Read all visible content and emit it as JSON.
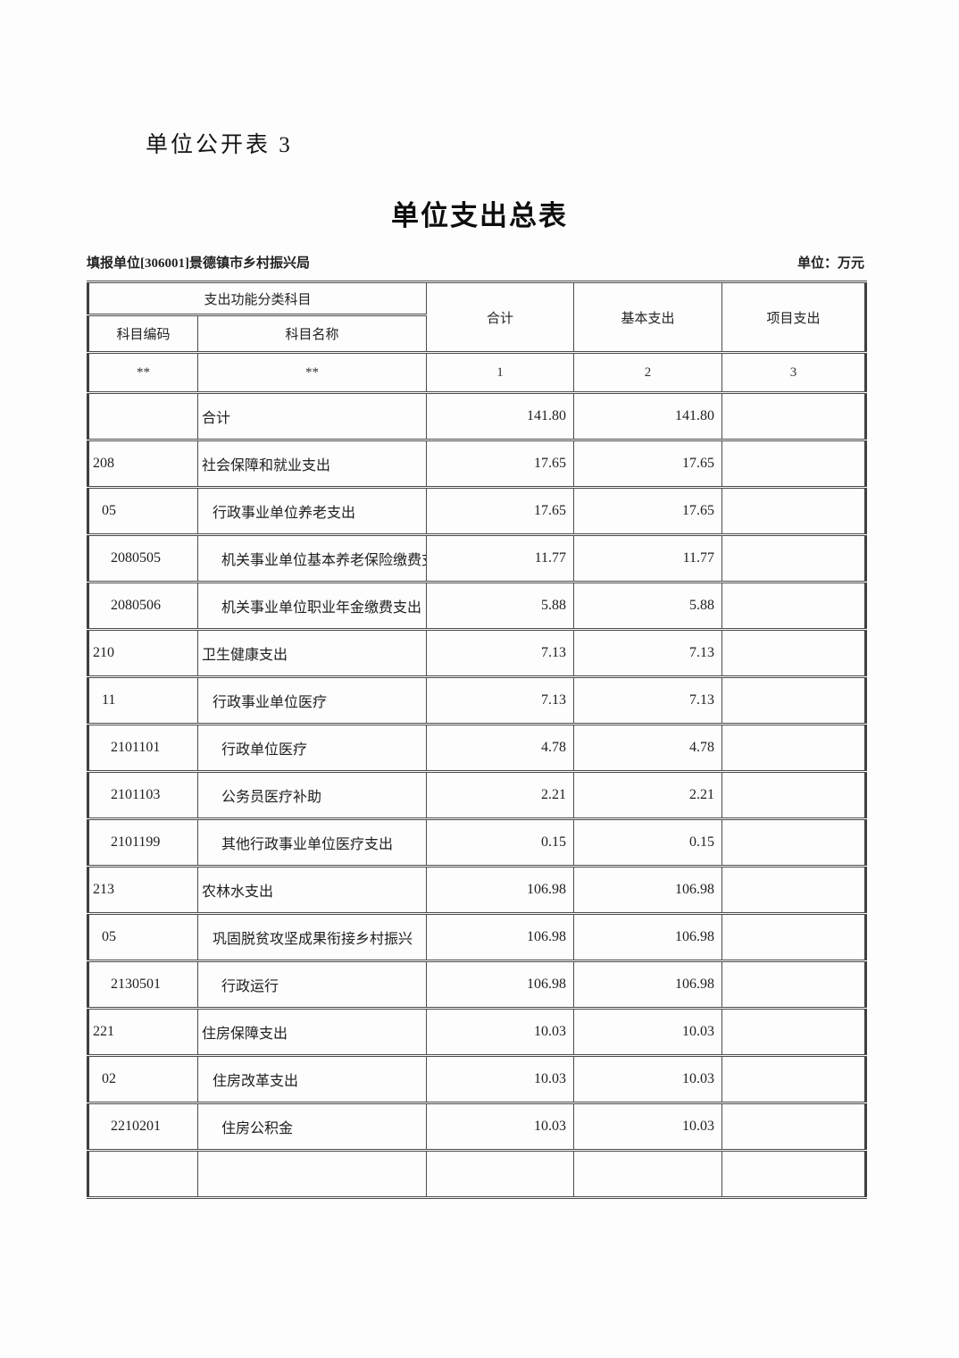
{
  "page": {
    "doc_label": "单位公开表 3",
    "title": "单位支出总表",
    "reporting_unit": "填报单位[306001]景德镇市乡村振兴局",
    "unit_note": "单位：万元"
  },
  "table": {
    "header": {
      "group_col": "支出功能分类科目",
      "code_col": "科目编码",
      "name_col": "科目名称",
      "total_col": "合计",
      "basic_col": "基本支出",
      "project_col": "项目支出",
      "code_mark": "**",
      "name_mark": "**",
      "total_num": "1",
      "basic_num": "2",
      "project_num": "3"
    },
    "rows": [
      {
        "level": 1,
        "code": "",
        "name": "合计",
        "total": "141.80",
        "basic": "141.80",
        "project": ""
      },
      {
        "level": 1,
        "code": "208",
        "name": "社会保障和就业支出",
        "total": "17.65",
        "basic": "17.65",
        "project": ""
      },
      {
        "level": 2,
        "code": "05",
        "name": "行政事业单位养老支出",
        "total": "17.65",
        "basic": "17.65",
        "project": ""
      },
      {
        "level": 3,
        "code": "2080505",
        "name": "机关事业单位基本养老保险缴费支出",
        "total": "11.77",
        "basic": "11.77",
        "project": ""
      },
      {
        "level": 3,
        "code": "2080506",
        "name": "机关事业单位职业年金缴费支出",
        "total": "5.88",
        "basic": "5.88",
        "project": ""
      },
      {
        "level": 1,
        "code": "210",
        "name": "卫生健康支出",
        "total": "7.13",
        "basic": "7.13",
        "project": ""
      },
      {
        "level": 2,
        "code": "11",
        "name": "行政事业单位医疗",
        "total": "7.13",
        "basic": "7.13",
        "project": ""
      },
      {
        "level": 3,
        "code": "2101101",
        "name": "行政单位医疗",
        "total": "4.78",
        "basic": "4.78",
        "project": ""
      },
      {
        "level": 3,
        "code": "2101103",
        "name": "公务员医疗补助",
        "total": "2.21",
        "basic": "2.21",
        "project": ""
      },
      {
        "level": 3,
        "code": "2101199",
        "name": "其他行政事业单位医疗支出",
        "total": "0.15",
        "basic": "0.15",
        "project": ""
      },
      {
        "level": 1,
        "code": "213",
        "name": "农林水支出",
        "total": "106.98",
        "basic": "106.98",
        "project": ""
      },
      {
        "level": 2,
        "code": "05",
        "name": "巩固脱贫攻坚成果衔接乡村振兴",
        "total": "106.98",
        "basic": "106.98",
        "project": ""
      },
      {
        "level": 3,
        "code": "2130501",
        "name": "行政运行",
        "total": "106.98",
        "basic": "106.98",
        "project": ""
      },
      {
        "level": 1,
        "code": "221",
        "name": "住房保障支出",
        "total": "10.03",
        "basic": "10.03",
        "project": ""
      },
      {
        "level": 2,
        "code": "02",
        "name": "住房改革支出",
        "total": "10.03",
        "basic": "10.03",
        "project": ""
      },
      {
        "level": 3,
        "code": "2210201",
        "name": "住房公积金",
        "total": "10.03",
        "basic": "10.03",
        "project": ""
      },
      {
        "level": 1,
        "code": "",
        "name": "",
        "total": "",
        "basic": "",
        "project": ""
      }
    ]
  }
}
